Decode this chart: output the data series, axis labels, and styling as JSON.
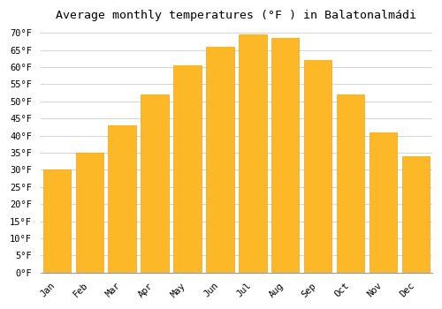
{
  "title": "Average monthly temperatures (°F ) in Balatonalmádi",
  "months": [
    "Jan",
    "Feb",
    "Mar",
    "Apr",
    "May",
    "Jun",
    "Jul",
    "Aug",
    "Sep",
    "Oct",
    "Nov",
    "Dec"
  ],
  "values": [
    30,
    35,
    43,
    52,
    60.5,
    66,
    69.5,
    68.5,
    62,
    52,
    41,
    34
  ],
  "bar_color": "#FDB827",
  "bar_edge_color": "#F0A020",
  "background_color": "#FFFFFF",
  "grid_color": "#CCCCCC",
  "ylim": [
    0,
    72
  ],
  "yticks": [
    0,
    5,
    10,
    15,
    20,
    25,
    30,
    35,
    40,
    45,
    50,
    55,
    60,
    65,
    70
  ],
  "title_fontsize": 9.5,
  "tick_fontsize": 7.5,
  "figsize": [
    5.0,
    3.5
  ],
  "dpi": 100
}
